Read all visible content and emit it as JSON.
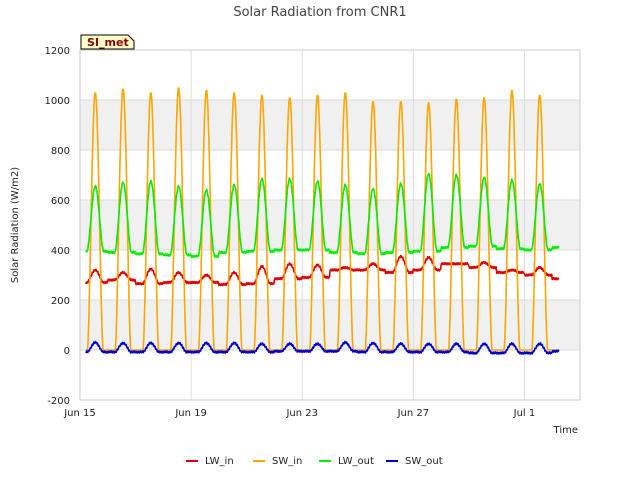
{
  "chart_data": {
    "type": "line",
    "title": "Solar Radiation from CNR1",
    "xlabel": "Time",
    "ylabel": "Solar Radiation (W/m2)",
    "badge": "SI_met",
    "ylim": [
      -200,
      1200
    ],
    "yticks": [
      -200,
      0,
      200,
      400,
      600,
      800,
      1000,
      1200
    ],
    "xlim": [
      "2024-06-15",
      "2024-07-03"
    ],
    "xticks": [
      {
        "value": "2024-06-15",
        "label": "Jun 15"
      },
      {
        "value": "2024-06-19",
        "label": "Jun 19"
      },
      {
        "value": "2024-06-23",
        "label": "Jun 23"
      },
      {
        "value": "2024-06-27",
        "label": "Jun 27"
      },
      {
        "value": "2024-07-01",
        "label": "Jul 1"
      }
    ],
    "grid": true,
    "legend_position": "bottom",
    "data_range": [
      "2024-06-15",
      "2024-07-02"
    ],
    "series": [
      {
        "name": "LW_in",
        "color": "#dd0000",
        "night": [
          270,
          280,
          265,
          270,
          270,
          262,
          265,
          285,
          290,
          320,
          320,
          310,
          320,
          345,
          330,
          310,
          300,
          285
        ],
        "day": [
          320,
          310,
          325,
          310,
          300,
          310,
          335,
          345,
          340,
          330,
          345,
          375,
          370,
          345,
          350,
          320,
          330,
          300
        ]
      },
      {
        "name": "SW_in",
        "color": "#ffa500",
        "night": [
          0,
          0,
          0,
          0,
          0,
          0,
          0,
          0,
          0,
          0,
          0,
          0,
          0,
          0,
          0,
          0,
          0,
          0
        ],
        "day": [
          1030,
          1045,
          1030,
          1050,
          1040,
          1030,
          1020,
          1010,
          1020,
          1030,
          995,
          995,
          990,
          1005,
          1010,
          1040,
          1020,
          0
        ]
      },
      {
        "name": "LW_out",
        "color": "#00ee00",
        "night": [
          395,
          390,
          385,
          380,
          375,
          390,
          395,
          400,
          400,
          390,
          385,
          390,
          395,
          410,
          415,
          405,
          400,
          410
        ],
        "day": [
          655,
          670,
          675,
          655,
          640,
          660,
          685,
          685,
          675,
          660,
          645,
          665,
          705,
          700,
          690,
          680,
          665,
          410
        ]
      },
      {
        "name": "SW_out",
        "color": "#0000cc",
        "night": [
          -8,
          -8,
          -8,
          -8,
          -8,
          -8,
          -8,
          -5,
          -5,
          -5,
          -8,
          -8,
          -8,
          -8,
          -12,
          -12,
          -12,
          -5
        ],
        "day": [
          30,
          28,
          28,
          28,
          28,
          28,
          25,
          25,
          25,
          30,
          28,
          25,
          25,
          25,
          25,
          25,
          25,
          -5
        ]
      }
    ]
  }
}
